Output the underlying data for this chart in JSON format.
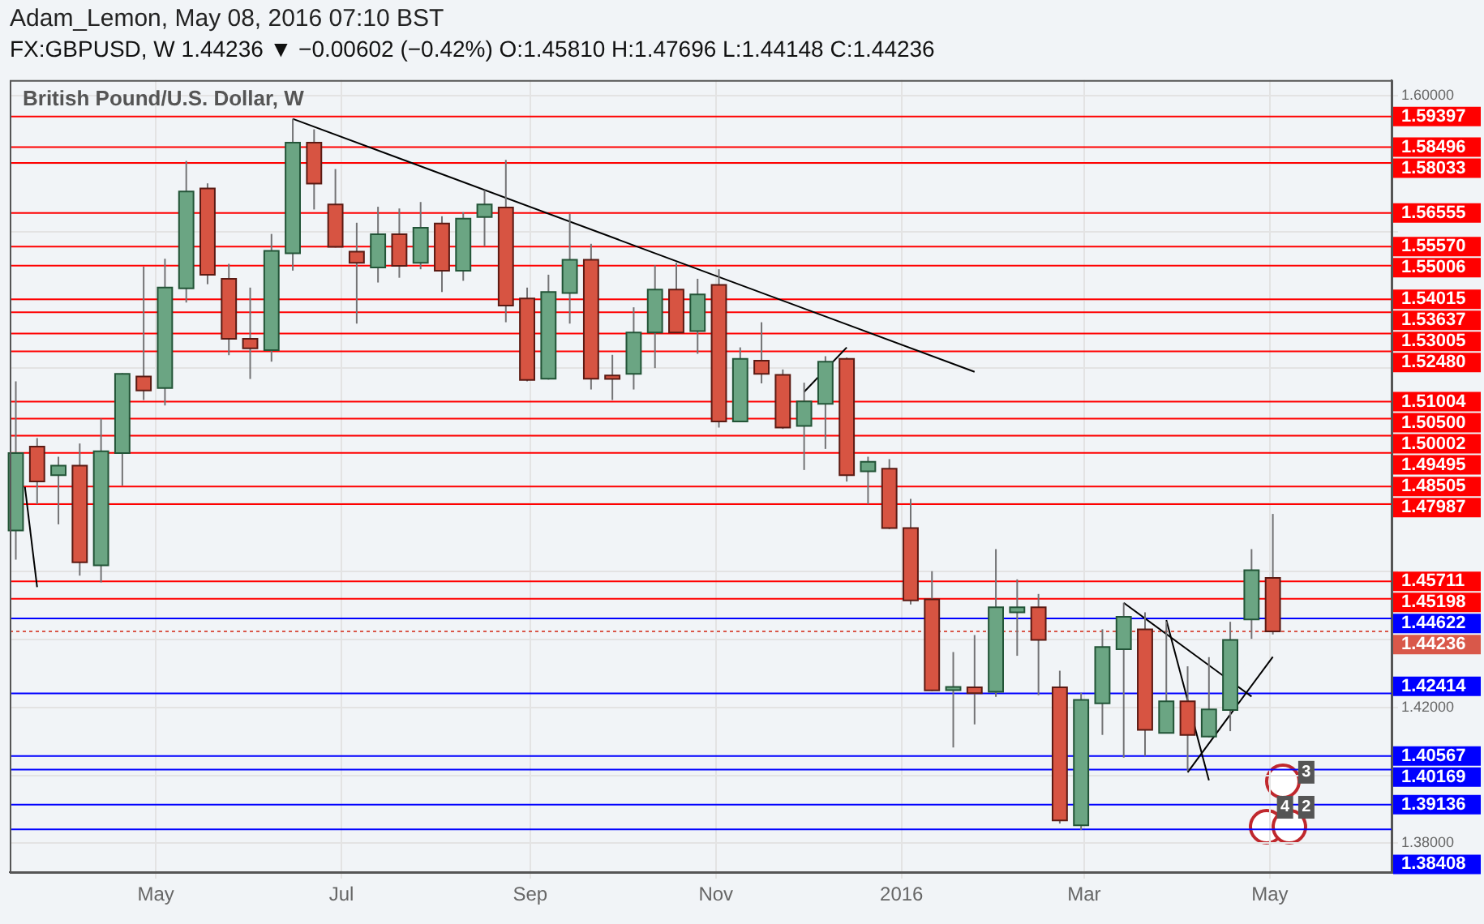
{
  "chart_data": {
    "type": "candlestick",
    "title": "Adam_Lemon, May 08, 2016 07:10 BST",
    "subtitle": "FX:GBPUSD, W 1.44236 ▼ −0.00602 (−0.42%) O:1.45810 H:1.47696 L:1.44148 C:1.44236",
    "annotations": [
      "British Pound/U.S. Dollar, W",
      {
        "text": "3",
        "x": "2016-05-13",
        "y": 1.4009
      },
      {
        "text": "4",
        "x": "2016-05-06",
        "y": 1.3906
      },
      {
        "text": "2",
        "x": "2016-05-13",
        "y": 1.3906
      }
    ],
    "x": [
      "2015-03-16",
      "2015-03-23",
      "2015-03-30",
      "2015-04-06",
      "2015-04-13",
      "2015-04-20",
      "2015-04-27",
      "2015-05-04",
      "2015-05-11",
      "2015-05-18",
      "2015-05-25",
      "2015-06-01",
      "2015-06-08",
      "2015-06-15",
      "2015-06-22",
      "2015-06-29",
      "2015-07-06",
      "2015-07-13",
      "2015-07-20",
      "2015-07-27",
      "2015-08-03",
      "2015-08-10",
      "2015-08-17",
      "2015-08-24",
      "2015-08-31",
      "2015-09-07",
      "2015-09-14",
      "2015-09-21",
      "2015-09-28",
      "2015-10-05",
      "2015-10-12",
      "2015-10-19",
      "2015-10-26",
      "2015-11-02",
      "2015-11-09",
      "2015-11-16",
      "2015-11-23",
      "2015-11-30",
      "2015-12-07",
      "2015-12-14",
      "2015-12-21",
      "2015-12-28",
      "2016-01-04",
      "2016-01-11",
      "2016-01-18",
      "2016-01-25",
      "2016-02-01",
      "2016-02-08",
      "2016-02-15",
      "2016-02-22",
      "2016-02-29",
      "2016-03-07",
      "2016-03-14",
      "2016-03-21",
      "2016-03-28",
      "2016-04-04",
      "2016-04-11",
      "2016-04-18",
      "2016-04-25",
      "2016-05-02"
    ],
    "ohlc": [
      [
        1.4721,
        1.516,
        1.4635,
        1.4949
      ],
      [
        1.4968,
        1.4993,
        1.4798,
        1.4865
      ],
      [
        1.4884,
        1.4938,
        1.4739,
        1.4912
      ],
      [
        1.4912,
        1.4977,
        1.4588,
        1.4627
      ],
      [
        1.4618,
        1.505,
        1.4568,
        1.4954
      ],
      [
        1.4949,
        1.5184,
        1.4853,
        1.5182
      ],
      [
        1.5174,
        1.5498,
        1.5105,
        1.5133
      ],
      [
        1.514,
        1.5521,
        1.5089,
        1.5436
      ],
      [
        1.5434,
        1.5809,
        1.5392,
        1.5719
      ],
      [
        1.5728,
        1.5743,
        1.5446,
        1.5474
      ],
      [
        1.5462,
        1.5506,
        1.5237,
        1.5285
      ],
      [
        1.5285,
        1.5436,
        1.5167,
        1.5257
      ],
      [
        1.5252,
        1.5594,
        1.5218,
        1.5544
      ],
      [
        1.5537,
        1.5933,
        1.5486,
        1.5863
      ],
      [
        1.5863,
        1.5902,
        1.5666,
        1.5742
      ],
      [
        1.5681,
        1.5785,
        1.5554,
        1.5556
      ],
      [
        1.5542,
        1.5627,
        1.533,
        1.5509
      ],
      [
        1.5495,
        1.5674,
        1.5451,
        1.5593
      ],
      [
        1.5593,
        1.5669,
        1.5465,
        1.55
      ],
      [
        1.5509,
        1.5688,
        1.549,
        1.5612
      ],
      [
        1.5625,
        1.5646,
        1.5423,
        1.5486
      ],
      [
        1.5486,
        1.5658,
        1.5456,
        1.5639
      ],
      [
        1.5644,
        1.5723,
        1.5558,
        1.5681
      ],
      [
        1.5672,
        1.5812,
        1.5334,
        1.5383
      ],
      [
        1.5404,
        1.5436,
        1.516,
        1.5164
      ],
      [
        1.5168,
        1.5474,
        1.5165,
        1.5423
      ],
      [
        1.542,
        1.5653,
        1.533,
        1.5518
      ],
      [
        1.5518,
        1.5565,
        1.5136,
        1.5168
      ],
      [
        1.5177,
        1.5238,
        1.5105,
        1.5167
      ],
      [
        1.5182,
        1.5378,
        1.5136,
        1.5304
      ],
      [
        1.5304,
        1.5502,
        1.5199,
        1.543
      ],
      [
        1.543,
        1.5509,
        1.5302,
        1.5304
      ],
      [
        1.5308,
        1.5462,
        1.5241,
        1.5416
      ],
      [
        1.5444,
        1.549,
        1.5024,
        1.5042
      ],
      [
        1.5042,
        1.526,
        1.504,
        1.5226
      ],
      [
        1.5221,
        1.5334,
        1.5154,
        1.5182
      ],
      [
        1.5179,
        1.5195,
        1.502,
        1.5024
      ],
      [
        1.5029,
        1.5156,
        1.4899,
        1.5101
      ],
      [
        1.5094,
        1.5234,
        1.4961,
        1.5218
      ],
      [
        1.5226,
        1.523,
        1.4865,
        1.4884
      ],
      [
        1.4895,
        1.4938,
        1.4798,
        1.4923
      ],
      [
        1.4903,
        1.4931,
        1.4725,
        1.4728
      ],
      [
        1.4728,
        1.4814,
        1.4503,
        1.4515
      ],
      [
        1.4518,
        1.4601,
        1.4248,
        1.425
      ],
      [
        1.4251,
        1.4363,
        1.4082,
        1.426
      ],
      [
        1.4259,
        1.4413,
        1.415,
        1.4242
      ],
      [
        1.4246,
        1.4666,
        1.4231,
        1.4495
      ],
      [
        1.448,
        1.4577,
        1.4352,
        1.4495
      ],
      [
        1.4495,
        1.4534,
        1.4236,
        1.4399
      ],
      [
        1.4259,
        1.4308,
        1.3858,
        1.3867
      ],
      [
        1.3853,
        1.4243,
        1.3839,
        1.4222
      ],
      [
        1.4212,
        1.443,
        1.4119,
        1.4378
      ],
      [
        1.4371,
        1.4508,
        1.4052,
        1.4467
      ],
      [
        1.443,
        1.448,
        1.4057,
        1.4134
      ],
      [
        1.4125,
        1.4453,
        1.4125,
        1.4218
      ],
      [
        1.4218,
        1.4321,
        1.4013,
        1.4119
      ],
      [
        1.4114,
        1.4348,
        1.4112,
        1.4194
      ],
      [
        1.4192,
        1.4452,
        1.413,
        1.4399
      ],
      [
        1.4459,
        1.4666,
        1.4402,
        1.4604
      ],
      [
        1.4581,
        1.47696,
        1.44148,
        1.44236
      ]
    ],
    "series": [
      {
        "type": "line",
        "color": "#000000",
        "x": [
          "2015-06-15",
          "2016-01-25"
        ],
        "values": [
          1.5933,
          1.5188
        ]
      },
      {
        "type": "line",
        "color": "#000000",
        "x": [
          "2015-03-19",
          "2015-03-23"
        ],
        "values": [
          1.4849,
          1.4554
        ]
      },
      {
        "type": "line",
        "color": "#000000",
        "x": [
          "2015-11-30",
          "2015-12-14"
        ],
        "values": [
          1.5129,
          1.526
        ]
      },
      {
        "type": "line",
        "color": "#000000",
        "x": [
          "2016-03-14",
          "2016-04-25"
        ],
        "values": [
          1.4508,
          1.4232
        ]
      },
      {
        "type": "line",
        "color": "#000000",
        "x": [
          "2016-03-28",
          "2016-04-11"
        ],
        "values": [
          1.4457,
          1.3985
        ]
      },
      {
        "type": "line",
        "color": "#000000",
        "x": [
          "2016-04-04",
          "2016-05-02"
        ],
        "values": [
          1.4009,
          1.4349
        ]
      }
    ],
    "ref_lines": [
      {
        "axis": "y",
        "value": 1.59397,
        "label": "1.59397",
        "color": "#ff0000"
      },
      {
        "axis": "y",
        "value": 1.58496,
        "label": "1.58496",
        "color": "#ff0000"
      },
      {
        "axis": "y",
        "value": 1.58033,
        "label": "1.58033",
        "color": "#ff0000"
      },
      {
        "axis": "y",
        "value": 1.56555,
        "label": "1.56555",
        "color": "#ff0000"
      },
      {
        "axis": "y",
        "value": 1.5557,
        "label": "1.55570",
        "color": "#ff0000"
      },
      {
        "axis": "y",
        "value": 1.55006,
        "label": "1.55006",
        "color": "#ff0000"
      },
      {
        "axis": "y",
        "value": 1.54015,
        "label": "1.54015",
        "color": "#ff0000"
      },
      {
        "axis": "y",
        "value": 1.53637,
        "label": "1.53637",
        "color": "#ff0000"
      },
      {
        "axis": "y",
        "value": 1.53005,
        "label": "1.53005",
        "color": "#ff0000"
      },
      {
        "axis": "y",
        "value": 1.5248,
        "label": "1.52480",
        "color": "#ff0000"
      },
      {
        "axis": "y",
        "value": 1.51004,
        "label": "1.51004",
        "color": "#ff0000"
      },
      {
        "axis": "y",
        "value": 1.505,
        "label": "1.50500",
        "color": "#ff0000"
      },
      {
        "axis": "y",
        "value": 1.50002,
        "label": "1.50002",
        "color": "#ff0000"
      },
      {
        "axis": "y",
        "value": 1.49495,
        "label": "1.49495",
        "color": "#ff0000"
      },
      {
        "axis": "y",
        "value": 1.48505,
        "label": "1.48505",
        "color": "#ff0000"
      },
      {
        "axis": "y",
        "value": 1.47987,
        "label": "1.47987",
        "color": "#ff0000"
      },
      {
        "axis": "y",
        "value": 1.45711,
        "label": "1.45711",
        "color": "#ff0000"
      },
      {
        "axis": "y",
        "value": 1.45198,
        "label": "1.45198",
        "color": "#ff0000"
      },
      {
        "axis": "y",
        "value": 1.44622,
        "label": "1.44622",
        "color": "#0000ff"
      },
      {
        "axis": "y",
        "value": 1.44236,
        "label": "1.44236",
        "color": "#d9584a",
        "line_style": "dotted"
      },
      {
        "axis": "y",
        "value": 1.42414,
        "label": "1.42414",
        "color": "#0000ff"
      },
      {
        "axis": "y",
        "value": 1.40567,
        "label": "1.40567",
        "color": "#0000ff"
      },
      {
        "axis": "y",
        "value": 1.40169,
        "label": "1.40169",
        "color": "#0000ff"
      },
      {
        "axis": "y",
        "value": 1.39136,
        "label": "1.39136",
        "color": "#0000ff"
      },
      {
        "axis": "y",
        "value": 1.38408,
        "label": "1.38408",
        "color": "#0000ff"
      }
    ],
    "xlim": [
      "2015-03-14",
      "2016-06-10"
    ],
    "xticks": [
      {
        "value": "2015-05-01",
        "label": "May"
      },
      {
        "value": "2015-07-01",
        "label": "Jul"
      },
      {
        "value": "2015-09-01",
        "label": "Sep"
      },
      {
        "value": "2015-11-01",
        "label": "Nov"
      },
      {
        "value": "2016-01-01",
        "label": "2016"
      },
      {
        "value": "2016-03-01",
        "label": "Mar"
      },
      {
        "value": "2016-05-01",
        "label": "May"
      }
    ],
    "ylim": [
      1.3715,
      1.6047
    ],
    "yticks": [
      {
        "value": 1.38,
        "label": "1.38000"
      },
      {
        "value": 1.4,
        "label": null
      },
      {
        "value": 1.42,
        "label": "1.42000"
      },
      {
        "value": 1.44,
        "label": null
      },
      {
        "value": 1.46,
        "label": null
      },
      {
        "value": 1.48,
        "label": null
      },
      {
        "value": 1.5,
        "label": null
      },
      {
        "value": 1.52,
        "label": null
      },
      {
        "value": 1.54,
        "label": null
      },
      {
        "value": 1.56,
        "label": null
      },
      {
        "value": 1.58,
        "label": null
      },
      {
        "value": 1.6,
        "label": "1.60000"
      }
    ],
    "grid": true,
    "legend": false
  }
}
